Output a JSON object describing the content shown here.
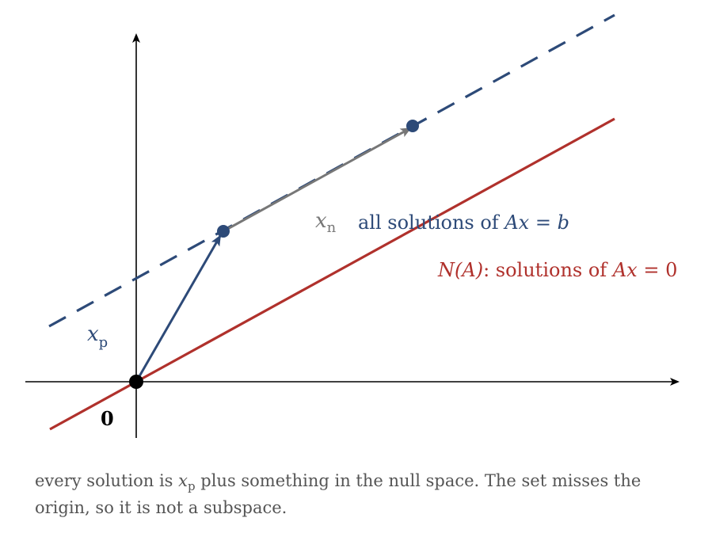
{
  "colors": {
    "axis": "#000000",
    "solution_line": "#2d4a78",
    "null_space_line": "#b0312c",
    "xn_arrow": "#777777",
    "caption_text": "#555555"
  },
  "figure": {
    "label_xp": {
      "var": "x",
      "sub": "p"
    },
    "label_xn": {
      "var": "x",
      "sub": "n"
    },
    "label_all_solutions": {
      "prefix": "all solutions of ",
      "lhs": "Ax",
      "eq": " = ",
      "rhs": "b"
    },
    "label_null_space": {
      "name": "N(A)",
      "middle": ": solutions of ",
      "lhs": "Ax",
      "eq": " = ",
      "rhs": "0"
    },
    "label_origin": "0"
  },
  "caption": {
    "part1": "every solution is ",
    "var": "x",
    "sub": "p",
    "part2": " plus something in the null space. The set misses the origin, so it is not a subspace."
  }
}
